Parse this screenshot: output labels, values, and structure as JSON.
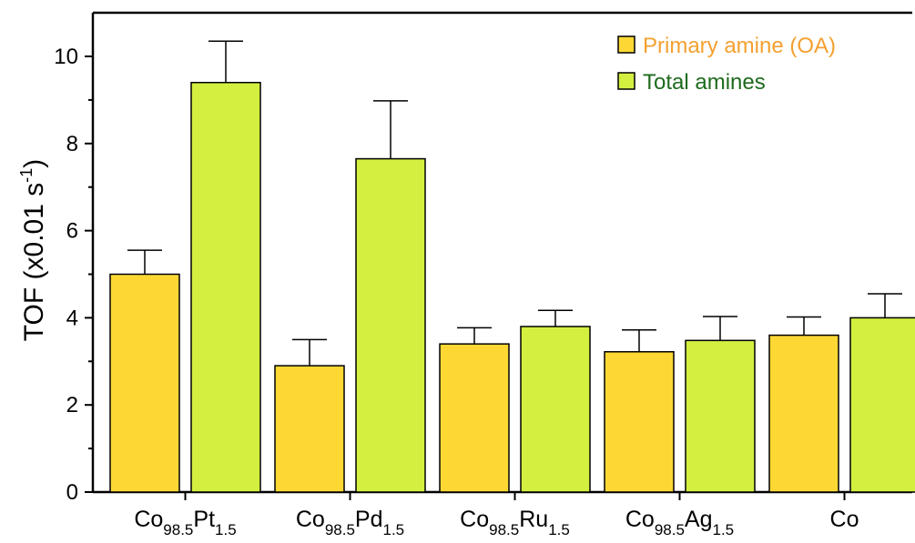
{
  "chart_data": {
    "type": "bar",
    "title": "",
    "xlabel": "",
    "ylabel": {
      "text": "TOF (x0.01 s",
      "sup": "-1",
      "close": ")"
    },
    "ylim": [
      0,
      11
    ],
    "yticks": [
      0,
      2,
      4,
      6,
      8,
      10
    ],
    "categories": [
      {
        "main": "Co",
        "sub1": "98.5",
        "el": "Pt",
        "sub2": "1.5"
      },
      {
        "main": "Co",
        "sub1": "98.5",
        "el": "Pd",
        "sub2": "1.5"
      },
      {
        "main": "Co",
        "sub1": "98.5",
        "el": "Ru",
        "sub2": "1.5"
      },
      {
        "main": "Co",
        "sub1": "98.5",
        "el": "Ag",
        "sub2": "1.5"
      },
      {
        "main": "Co",
        "sub1": "",
        "el": "",
        "sub2": ""
      }
    ],
    "series": [
      {
        "name": "Primary amine (OA)",
        "color": "#fdd835",
        "text_color": "#f4a030",
        "values": [
          5.0,
          2.9,
          3.4,
          3.22,
          3.6
        ],
        "errors": [
          0.55,
          0.6,
          0.37,
          0.5,
          0.42
        ]
      },
      {
        "name": "Total amines",
        "color": "#d4ef40",
        "text_color": "#1e6b1e",
        "values": [
          9.4,
          7.65,
          3.8,
          3.48,
          4.0
        ],
        "errors": [
          0.95,
          1.33,
          0.37,
          0.55,
          0.55
        ]
      }
    ],
    "legend": "top-right",
    "grid": false
  }
}
